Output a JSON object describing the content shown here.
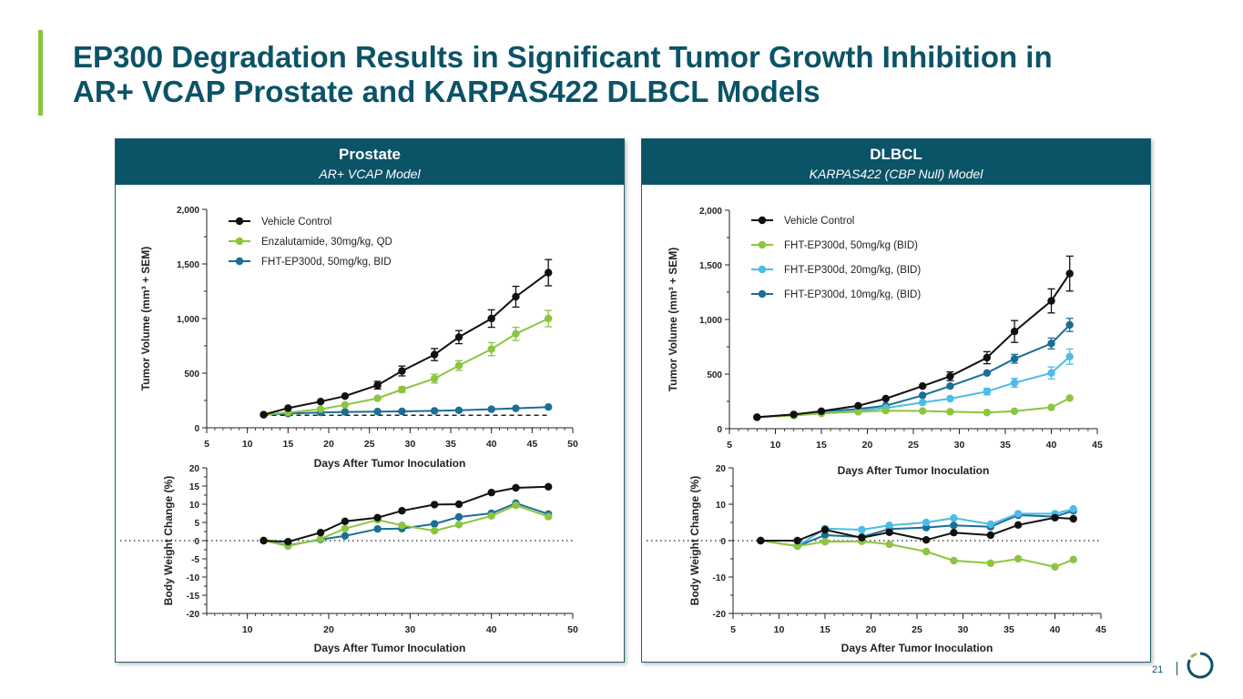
{
  "title_line1": "EP300 Degradation Results in Significant Tumor Growth Inhibition in",
  "title_line2": "AR+ VCAP Prostate and KARPAS422 DLBCL Models",
  "page_number": "21",
  "colors": {
    "teal": "#0b5367",
    "accent_green": "#8cc540",
    "black": "#111111",
    "green": "#8cc540",
    "blue": "#1a6f93",
    "light_blue": "#4bbde6"
  },
  "panels": {
    "prostate": {
      "heading": "Prostate",
      "subheading": "AR+ VCAP Model"
    },
    "dlbcl": {
      "heading": "DLBCL",
      "subheading": "KARPAS422 (CBP Null) Model"
    }
  },
  "chart_data": [
    {
      "type": "line",
      "panel": "Prostate",
      "xlabel": "Days After Tumor Inoculation",
      "ylabel": "Tumor Volume (mm³ + SEM)",
      "xlim": [
        5,
        50
      ],
      "ylim": [
        0,
        2000
      ],
      "xticks": [
        5,
        10,
        15,
        20,
        25,
        30,
        35,
        40,
        45,
        50
      ],
      "yticks": [
        0,
        500,
        1000,
        1500,
        2000
      ],
      "ytick_labels": [
        "0",
        "500",
        "1,000",
        "1,500",
        "2,000"
      ],
      "legend_position": "top-left",
      "baseline": {
        "y": 115,
        "x_range": [
          12,
          47
        ],
        "style": "dashed"
      },
      "series": [
        {
          "name": "Vehicle  Control",
          "color": "#111111",
          "x": [
            12,
            15,
            19,
            22,
            26,
            29,
            33,
            36,
            40,
            43,
            47
          ],
          "y": [
            120,
            180,
            240,
            290,
            390,
            520,
            670,
            830,
            1000,
            1200,
            1420
          ],
          "err": [
            0,
            0,
            0,
            0,
            35,
            45,
            55,
            60,
            80,
            95,
            120
          ]
        },
        {
          "name": "Enzalutamide, 30mg/kg, QD",
          "color": "#8cc540",
          "x": [
            12,
            15,
            19,
            22,
            26,
            29,
            33,
            36,
            40,
            43,
            47
          ],
          "y": [
            120,
            140,
            170,
            210,
            270,
            350,
            450,
            570,
            720,
            860,
            1000
          ],
          "err": [
            0,
            0,
            0,
            0,
            0,
            25,
            40,
            45,
            60,
            60,
            75
          ]
        },
        {
          "name": "FHT-EP300d, 50mg/kg, BID",
          "color": "#1a6f93",
          "x": [
            12,
            15,
            19,
            22,
            26,
            29,
            33,
            36,
            40,
            43,
            47
          ],
          "y": [
            120,
            130,
            140,
            145,
            148,
            150,
            155,
            160,
            170,
            178,
            190
          ],
          "err": [
            0,
            0,
            0,
            0,
            0,
            0,
            0,
            0,
            0,
            0,
            0
          ]
        }
      ]
    },
    {
      "type": "line",
      "panel": "Prostate",
      "xlabel": "Days After Tumor Inoculation",
      "ylabel": "Body Weight Change (%)",
      "xlim": [
        5,
        50
      ],
      "ylim": [
        -20,
        20
      ],
      "xticks": [
        10,
        20,
        30,
        40,
        50
      ],
      "yticks": [
        -20,
        -15,
        -10,
        -5,
        0,
        5,
        10,
        15,
        20
      ],
      "zero_line": "dotted",
      "series": [
        {
          "name": "Vehicle  Control",
          "color": "#111111",
          "x": [
            12,
            15,
            19,
            22,
            26,
            29,
            33,
            36,
            40,
            43,
            47
          ],
          "y": [
            0,
            -0.3,
            2.2,
            5.3,
            6.3,
            8.2,
            9.9,
            10,
            13.2,
            14.5,
            14.8
          ]
        },
        {
          "name": "Enzalutamide, 30mg/kg, QD",
          "color": "#8cc540",
          "x": [
            12,
            15,
            19,
            22,
            26,
            29,
            33,
            36,
            40,
            43,
            47
          ],
          "y": [
            0,
            -1.5,
            0.5,
            3.3,
            5.7,
            4.2,
            2.7,
            4.4,
            6.8,
            9.7,
            6.6
          ]
        },
        {
          "name": "FHT-EP300d, 50mg/kg, BID",
          "color": "#1a6f93",
          "x": [
            12,
            15,
            19,
            22,
            26,
            29,
            33,
            36,
            40,
            43,
            47
          ],
          "y": [
            0,
            -1.3,
            0.3,
            1.3,
            3.2,
            3.3,
            4.6,
            6.5,
            7.5,
            10.3,
            7.3
          ]
        }
      ]
    },
    {
      "type": "line",
      "panel": "DLBCL",
      "xlabel": "Days After Tumor Inoculation",
      "ylabel": "Tumor Volume (mm³ + SEM)",
      "xlim": [
        5,
        45
      ],
      "ylim": [
        0,
        2000
      ],
      "xticks": [
        5,
        10,
        15,
        20,
        25,
        30,
        35,
        40,
        45
      ],
      "yticks": [
        0,
        500,
        1000,
        1500,
        2000
      ],
      "ytick_labels": [
        "0",
        "500",
        "1,000",
        "1,500",
        "2,000"
      ],
      "legend_position": "top-left",
      "series": [
        {
          "name": "Vehicle Control",
          "color": "#111111",
          "x": [
            8,
            12,
            15,
            19,
            22,
            26,
            29,
            33,
            36,
            40,
            42
          ],
          "y": [
            105,
            130,
            160,
            210,
            275,
            390,
            480,
            650,
            890,
            1170,
            1420
          ],
          "err": [
            0,
            0,
            0,
            0,
            0,
            0,
            40,
            55,
            100,
            110,
            160
          ]
        },
        {
          "name": "FHT-EP300d, 50mg/kg (BID)",
          "color": "#8cc540",
          "x": [
            8,
            12,
            15,
            19,
            22,
            26,
            29,
            33,
            36,
            40,
            42
          ],
          "y": [
            105,
            120,
            140,
            155,
            165,
            162,
            155,
            148,
            160,
            195,
            280
          ],
          "err": [
            0,
            0,
            0,
            0,
            0,
            0,
            0,
            0,
            0,
            0,
            0
          ]
        },
        {
          "name": "FHT-EP300d, 20mg/kg, (BID)",
          "color": "#4bbde6",
          "x": [
            8,
            12,
            15,
            19,
            22,
            26,
            29,
            33,
            36,
            40,
            42
          ],
          "y": [
            105,
            125,
            145,
            165,
            190,
            240,
            275,
            340,
            420,
            510,
            660
          ],
          "err": [
            0,
            0,
            0,
            0,
            0,
            0,
            0,
            30,
            40,
            55,
            70
          ]
        },
        {
          "name": "FHT-EP300d, 10mg/kg, (BID)",
          "color": "#1a6f93",
          "x": [
            8,
            12,
            15,
            19,
            22,
            26,
            29,
            33,
            36,
            40,
            42
          ],
          "y": [
            105,
            130,
            155,
            180,
            210,
            305,
            390,
            510,
            640,
            780,
            950
          ],
          "err": [
            0,
            0,
            0,
            0,
            0,
            0,
            0,
            0,
            40,
            50,
            60
          ]
        }
      ]
    },
    {
      "type": "line",
      "panel": "DLBCL",
      "xlabel": "Days After Tumor Inoculation",
      "ylabel": "Body Weight Change (%)",
      "xlim": [
        5,
        45
      ],
      "ylim": [
        -20,
        20
      ],
      "xticks": [
        5,
        10,
        15,
        20,
        25,
        30,
        35,
        40,
        45
      ],
      "yticks": [
        -20,
        -10,
        0,
        10,
        20
      ],
      "zero_line": "dotted",
      "series": [
        {
          "name": "Vehicle Control",
          "color": "#111111",
          "x": [
            8,
            12,
            15,
            19,
            22,
            26,
            29,
            33,
            36,
            40,
            42
          ],
          "y": [
            0,
            0,
            3,
            0.8,
            2.3,
            0.2,
            2.2,
            1.5,
            4.3,
            6.3,
            6
          ]
        },
        {
          "name": "FHT-EP300d, 50mg/kg (BID)",
          "color": "#8cc540",
          "x": [
            8,
            12,
            15,
            19,
            22,
            26,
            29,
            33,
            36,
            40,
            42
          ],
          "y": [
            0,
            -1.5,
            -0.3,
            -0.2,
            -1,
            -3,
            -5.5,
            -6.2,
            -5,
            -7.2,
            -5.2
          ]
        },
        {
          "name": "FHT-EP300d, 20mg/kg, (BID)",
          "color": "#4bbde6",
          "x": [
            8,
            12,
            15,
            19,
            22,
            26,
            29,
            33,
            36,
            40,
            42
          ],
          "y": [
            0,
            -1.5,
            3.3,
            3,
            4.2,
            5,
            6.2,
            4.5,
            7.4,
            7.4,
            8.7
          ]
        },
        {
          "name": "FHT-EP300d, 10mg/kg, (BID)",
          "color": "#1a6f93",
          "x": [
            8,
            12,
            15,
            19,
            22,
            26,
            29,
            33,
            36,
            40,
            42
          ],
          "y": [
            0,
            -1.5,
            1.5,
            1,
            3.2,
            3.6,
            4.2,
            3.8,
            7,
            6.6,
            8.2
          ]
        }
      ]
    }
  ]
}
